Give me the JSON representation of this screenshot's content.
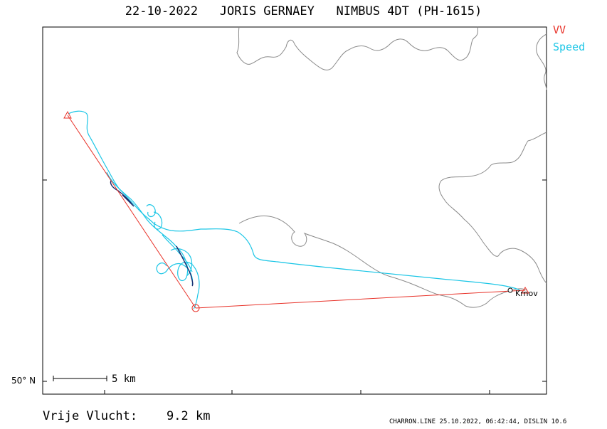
{
  "header": {
    "title": "22-10-2022   JORIS GERNAEY   NIMBUS 4DT (PH-1615)"
  },
  "legend": {
    "vv": "VV",
    "speed": "Speed"
  },
  "colors": {
    "vv": "#e8332a",
    "speed": "#1cc6e6",
    "border": "#8a8a8a",
    "frame": "#000000"
  },
  "axis": {
    "lat_label": "50° N"
  },
  "scale": {
    "label": "5 km"
  },
  "map": {
    "town": "Krnov"
  },
  "footer": {
    "distance_label": "Vrije Vlucht:",
    "distance_value": "9.2 km",
    "credits": "CHARRON.LINE 25.10.2022, 06:42:44, DISLIN 10.6"
  }
}
